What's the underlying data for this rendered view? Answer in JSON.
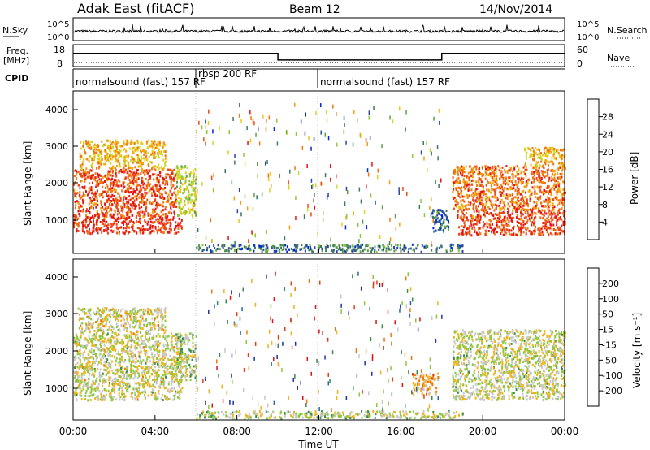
{
  "header": {
    "station": "Adak East (fitACF)",
    "beam": "Beam 12",
    "date": "14/Nov/2014"
  },
  "top_panels": {
    "nsky_label": "N.Sky",
    "nsky_ticks": [
      "10^5",
      "10^0"
    ],
    "nsearch_label": "N.Search",
    "nsearch_ticks": [
      "10^5",
      "10^0"
    ],
    "freq_label": "Freq.",
    "freq_unit": "[MHz]",
    "freq_ticks": [
      "18",
      "8"
    ],
    "nave_label": "Nave",
    "nave_ticks": [
      "60",
      "0"
    ],
    "cpid_label": "CPID"
  },
  "cpid": [
    {
      "start": 0,
      "end": 6,
      "name": "normalsound (fast) 157 RF"
    },
    {
      "start": 6,
      "end": 12,
      "name": "rbsp 200 RF"
    },
    {
      "start": 12,
      "end": 24,
      "name": "normalsound (fast) 157 RF"
    }
  ],
  "frequency_steps": [
    {
      "start": 0,
      "end": 10,
      "value": 14
    },
    {
      "start": 10,
      "end": 18,
      "value": 11
    },
    {
      "start": 18,
      "end": 24,
      "value": 14
    }
  ],
  "panels": {
    "power": {
      "ylabel": "Slant Range [km]",
      "yticks": [
        "1000",
        "2000",
        "3000",
        "4000"
      ],
      "colorbar_label": "Power [dB]",
      "colorbar_ticks": [
        "4",
        "8",
        "12",
        "16",
        "20",
        "24",
        "28"
      ],
      "colorbar_colors": [
        "#0028dc",
        "#2846a8",
        "#3c7864",
        "#5aa046",
        "#8cc83c",
        "#c8dc28",
        "#f0c814",
        "#f5a00a",
        "#f07814",
        "#f04b14",
        "#e61414"
      ]
    },
    "velocity": {
      "ylabel": "Slant Range [km]",
      "yticks": [
        "1000",
        "2000",
        "3000",
        "4000"
      ],
      "colorbar_label": "Velocity [m s⁻¹]",
      "colorbar_ticks": [
        "200",
        "100",
        "50",
        "15",
        "-15",
        "-50",
        "-100",
        "-200"
      ],
      "colorbar_colors": [
        "#1e32aa",
        "#2a64a0",
        "#3c8c50",
        "#8cc83c",
        "#c8c8c8",
        "#f0b41e",
        "#f0780a",
        "#e63c14",
        "#dc1414"
      ]
    }
  },
  "x_axis": {
    "label": "Time UT",
    "ticks": [
      "00:00",
      "04:00",
      "08:00",
      "12:00",
      "16:00",
      "20:00",
      "00:00"
    ]
  },
  "chart_data": {
    "type": "heatmap",
    "x_unit": "hours UT",
    "xlim": [
      0,
      24
    ],
    "ylim": [
      200,
      4600
    ],
    "y_unit": "km",
    "power_regions": [
      {
        "t0": 0.0,
        "t1": 5.3,
        "r0": 750,
        "r1": 1200,
        "intensity": 28
      },
      {
        "t0": 0.0,
        "t1": 5.0,
        "r0": 1200,
        "r1": 2500,
        "intensity": 26
      },
      {
        "t0": 0.3,
        "t1": 4.5,
        "r0": 2500,
        "r1": 3300,
        "intensity": 20
      },
      {
        "t0": 5.0,
        "t1": 6.0,
        "r0": 1200,
        "r1": 2600,
        "intensity": 16
      },
      {
        "t0": 18.7,
        "t1": 24.0,
        "r0": 700,
        "r1": 1400,
        "intensity": 27
      },
      {
        "t0": 18.5,
        "t1": 24.0,
        "r0": 1400,
        "r1": 2600,
        "intensity": 24
      },
      {
        "t0": 22.0,
        "t1": 24.0,
        "r0": 2600,
        "r1": 3100,
        "intensity": 20
      },
      {
        "t0": 17.5,
        "t1": 18.3,
        "r0": 800,
        "r1": 1400,
        "intensity": 6
      },
      {
        "t0": 6.0,
        "t1": 19.0,
        "r0": 250,
        "r1": 450,
        "intensity": 8
      }
    ],
    "velocity_regions": [
      {
        "t0": 0.0,
        "t1": 5.3,
        "r0": 750,
        "r1": 2600,
        "velocity": 0
      },
      {
        "t0": 0.2,
        "t1": 4.5,
        "r0": 2600,
        "r1": 3300,
        "velocity": -10
      },
      {
        "t0": 5.0,
        "t1": 6.0,
        "r0": 1300,
        "r1": 2600,
        "velocity": 30
      },
      {
        "t0": 18.5,
        "t1": 24.0,
        "r0": 750,
        "r1": 2700,
        "velocity": 5
      },
      {
        "t0": 16.5,
        "t1": 17.8,
        "r0": 900,
        "r1": 1500,
        "velocity": -60
      },
      {
        "t0": 6.0,
        "t1": 19.0,
        "r0": 250,
        "r1": 450,
        "velocity": 20
      }
    ]
  }
}
